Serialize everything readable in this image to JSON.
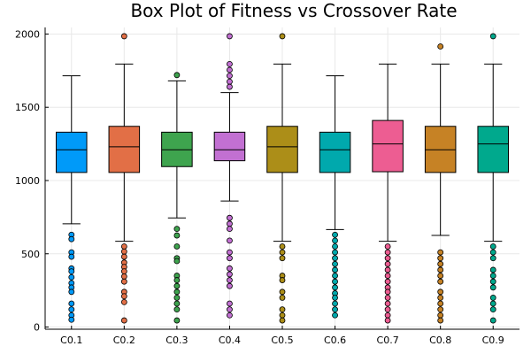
{
  "chart_data": {
    "type": "box",
    "title": "Box Plot of Fitness vs Crossover Rate",
    "xlabel": "",
    "ylabel": "",
    "ylim": [
      -15,
      2045
    ],
    "yticks": [
      0,
      500,
      1000,
      1500,
      2000
    ],
    "grid": true,
    "legend": "none",
    "categories": [
      "C0.1",
      "C0.2",
      "C0.3",
      "C0.4",
      "C0.5",
      "C0.6",
      "C0.7",
      "C0.8",
      "C0.9"
    ],
    "series": [
      {
        "color": "#009af9",
        "q1": 1055,
        "median": 1210,
        "q3": 1330,
        "lower": 705,
        "upper": 1715,
        "outliers": [
          630,
          600,
          510,
          480,
          400,
          380,
          340,
          300,
          270,
          240,
          160,
          120,
          80,
          50
        ]
      },
      {
        "color": "#e26f46",
        "q1": 1055,
        "median": 1230,
        "q3": 1370,
        "lower": 585,
        "upper": 1795,
        "outliers": [
          1985,
          550,
          515,
          480,
          440,
          410,
          380,
          345,
          310,
          240,
          210,
          170,
          45
        ]
      },
      {
        "color": "#3ea44e",
        "q1": 1095,
        "median": 1210,
        "q3": 1330,
        "lower": 745,
        "upper": 1680,
        "outliers": [
          1720,
          670,
          625,
          550,
          470,
          450,
          350,
          320,
          280,
          240,
          200,
          160,
          120,
          45
        ]
      },
      {
        "color": "#c270d2",
        "q1": 1135,
        "median": 1210,
        "q3": 1330,
        "lower": 860,
        "upper": 1600,
        "outliers": [
          1985,
          1795,
          1755,
          1715,
          1675,
          1640,
          745,
          705,
          670,
          590,
          510,
          470,
          400,
          360,
          320,
          280,
          160,
          120,
          80
        ]
      },
      {
        "color": "#ac8e18",
        "q1": 1055,
        "median": 1230,
        "q3": 1370,
        "lower": 585,
        "upper": 1795,
        "outliers": [
          1985,
          550,
          510,
          470,
          350,
          320,
          240,
          200,
          120,
          80,
          45
        ]
      },
      {
        "color": "#00a9ad",
        "q1": 1055,
        "median": 1210,
        "q3": 1330,
        "lower": 665,
        "upper": 1715,
        "outliers": [
          630,
          590,
          550,
          510,
          470,
          430,
          390,
          350,
          310,
          270,
          230,
          200,
          160,
          120,
          80
        ]
      },
      {
        "color": "#ed5d92",
        "q1": 1060,
        "median": 1250,
        "q3": 1410,
        "lower": 585,
        "upper": 1795,
        "outliers": [
          550,
          510,
          470,
          430,
          390,
          350,
          310,
          270,
          240,
          200,
          160,
          120,
          80,
          45
        ]
      },
      {
        "color": "#c68225",
        "q1": 1055,
        "median": 1210,
        "q3": 1370,
        "lower": 625,
        "upper": 1795,
        "outliers": [
          1915,
          510,
          470,
          430,
          390,
          350,
          310,
          240,
          200,
          160,
          120,
          80,
          45
        ]
      },
      {
        "color": "#00a98d",
        "q1": 1055,
        "median": 1250,
        "q3": 1370,
        "lower": 585,
        "upper": 1795,
        "outliers": [
          1985,
          550,
          510,
          470,
          390,
          350,
          310,
          270,
          200,
          160,
          120,
          45
        ]
      }
    ]
  }
}
